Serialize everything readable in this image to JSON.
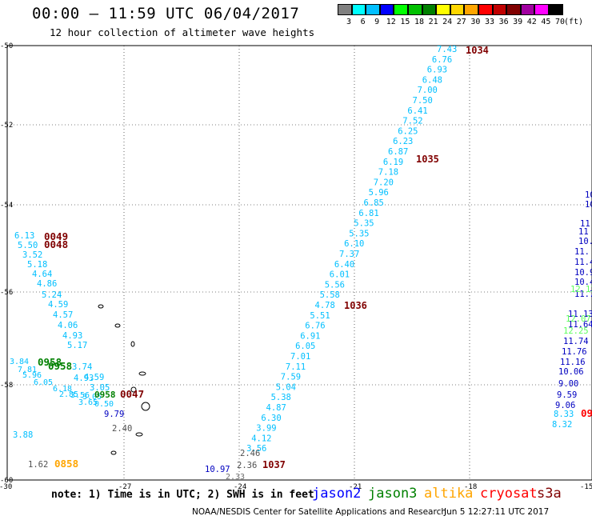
{
  "header": {
    "title": "00:00 – 11:59 UTC 06/04/2017",
    "subtitle": "12 hour collection of altimeter wave heights"
  },
  "legend": {
    "unit": "(ft)",
    "bins": [
      {
        "color": "#808080",
        "label": "3"
      },
      {
        "color": "#00ffff",
        "label": "6"
      },
      {
        "color": "#00bfff",
        "label": "9"
      },
      {
        "color": "#0000ff",
        "label": "12"
      },
      {
        "color": "#00ff00",
        "label": "15"
      },
      {
        "color": "#00c000",
        "label": "18"
      },
      {
        "color": "#008000",
        "label": "21"
      },
      {
        "color": "#ffff00",
        "label": "24"
      },
      {
        "color": "#ffd700",
        "label": "27"
      },
      {
        "color": "#ffa500",
        "label": "30"
      },
      {
        "color": "#ff0000",
        "label": "33"
      },
      {
        "color": "#c00000",
        "label": "36"
      },
      {
        "color": "#800000",
        "label": "39"
      },
      {
        "color": "#a000a0",
        "label": "42"
      },
      {
        "color": "#ff00ff",
        "label": "45"
      },
      {
        "color": "#000000",
        "label": "70"
      }
    ]
  },
  "axes": {
    "lat_labels": [
      "-50",
      "-52",
      "-54",
      "-56",
      "-58",
      "-60"
    ],
    "lon_labels": [
      "-30",
      "-27",
      "-24",
      "-21",
      "-18",
      "-15"
    ]
  },
  "track_labels": {
    "times": [
      {
        "text": "1034",
        "color": "#800000"
      },
      {
        "text": "1035",
        "color": "#800000"
      },
      {
        "text": "1036",
        "color": "#800000"
      },
      {
        "text": "1037",
        "color": "#800000"
      },
      {
        "text": "0049",
        "color": "#800000"
      },
      {
        "text": "0048",
        "color": "#800000"
      },
      {
        "text": "0958",
        "color": "#008000"
      },
      {
        "text": "0958",
        "color": "#008000"
      },
      {
        "text": "0047",
        "color": "#800000"
      },
      {
        "text": "0858",
        "color": "#ffa500"
      },
      {
        "text": "09",
        "color": "#ff0000"
      }
    ],
    "track_a": [
      "7.43",
      "6.76",
      "6.93",
      "6.48",
      "7.00",
      "7.50",
      "6.41",
      "7.52",
      "6.25",
      "6.23",
      "6.87",
      "6.19",
      "7.18",
      "7.20",
      "5.96",
      "6.85",
      "6.81",
      "5.35",
      "5.35",
      "6.10",
      "7.37",
      "6.40",
      "6.01",
      "5.56",
      "5.58",
      "4.78",
      "5.51",
      "6.76",
      "6.91",
      "6.05",
      "7.01",
      "7.11",
      "7.59",
      "5.04",
      "5.38",
      "4.87",
      "6.30",
      "3.99",
      "4.12",
      "3.56"
    ],
    "track_a_gray": [
      "2.46",
      "2.36"
    ],
    "track_a_blue": [
      "10.97"
    ],
    "track_b": [
      "6.13",
      "5.50",
      "3.52",
      "5.18",
      "4.64",
      "4.86",
      "5.24",
      "4.59",
      "4.57",
      "4.06",
      "4.93",
      "5.17",
      "3.74",
      "4.93",
      "4.59",
      "3.05",
      "3.88"
    ],
    "track_b_blue": [
      "9.79"
    ],
    "track_b_gray": [
      "2.40",
      "1.62"
    ],
    "track_c_blue": [
      "10",
      "10",
      "11",
      "11",
      "10.",
      "11.",
      "11.4",
      "10.9",
      "10.4",
      "11.7",
      "11.13",
      "11.64",
      "11.74",
      "11.76",
      "11.16",
      "10.06",
      "9.00",
      "9.59",
      "9.06"
    ],
    "track_c_green": [
      "12.13",
      "12.07",
      "12.25"
    ],
    "track_c_cyan": [
      "8.33",
      "8.32"
    ]
  },
  "footer": {
    "note": "note: 1) Time is in UTC; 2) SWH is in feet",
    "satellites": [
      {
        "name": "jason2",
        "color": "#0000ff"
      },
      {
        "name": "jason3",
        "color": "#008000"
      },
      {
        "name": "altika",
        "color": "#ffa500"
      },
      {
        "name": "cryosat",
        "color": "#ff0000"
      },
      {
        "name": "s3a",
        "color": "#800000"
      }
    ],
    "credit": "NOAA/NESDIS Center for Satellite Applications and Research",
    "timestamp": "Jun  5 12:27:11 UTC 2017"
  }
}
